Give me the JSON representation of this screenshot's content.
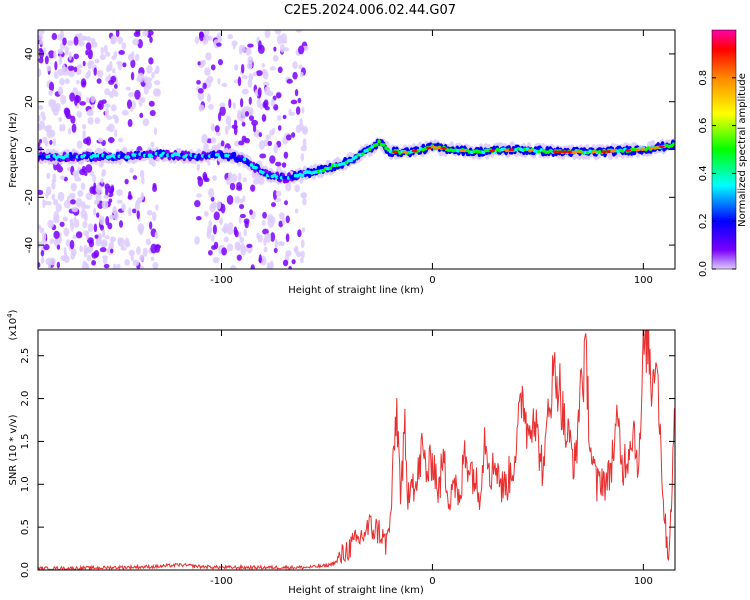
{
  "title": "C2E5.2024.006.02.44.G07",
  "chart_data": [
    {
      "type": "heatmap",
      "xlabel": "Height of straight line (km)",
      "ylabel": "Frequency (Hz)",
      "xlim": [
        -187,
        115
      ],
      "ylim": [
        -50,
        50
      ],
      "xticks": [
        -100,
        0,
        100
      ],
      "yticks": [
        -40,
        -20,
        0,
        20,
        40
      ],
      "colorbar": {
        "label": "Normalized spectral amplitude",
        "range": [
          0.0,
          1.0
        ],
        "ticks": [
          "0.0",
          "0.2",
          "0.4",
          "0.6",
          "0.8"
        ],
        "colors": [
          "#ddccff",
          "#7a00ff",
          "#0000ff",
          "#00ffff",
          "#00ff00",
          "#ffff00",
          "#ff8800",
          "#ff0000",
          "#ff00aa"
        ]
      },
      "ridge": {
        "x": [
          -187,
          -150,
          -130,
          -110,
          -100,
          -90,
          -80,
          -70,
          -60,
          -50,
          -40,
          -30,
          -25,
          -20,
          -10,
          0,
          20,
          40,
          60,
          80,
          100,
          115
        ],
        "y": [
          -3,
          -3,
          -2,
          -3,
          -2,
          -4,
          -10,
          -12,
          -10,
          -8,
          -5,
          0,
          3,
          -1,
          -1,
          1,
          -1,
          0,
          -1,
          -1,
          0,
          2
        ]
      }
    },
    {
      "type": "line",
      "xlabel": "Height of straight line (km)",
      "ylabel": "SNR (10 * v/v)",
      "exponent_label": "(x10",
      "exponent_sup": "4",
      "exponent_close": ")",
      "xlim": [
        -187,
        115
      ],
      "ylim": [
        0.0,
        2.8
      ],
      "xticks": [
        -100,
        0,
        100
      ],
      "yticks": [
        "0.0",
        "0.5",
        "1.0",
        "1.5",
        "2.0",
        "2.5"
      ],
      "color": "#e83030",
      "series": [
        {
          "x": [
            -187,
            -170,
            -150,
            -130,
            -120,
            -110,
            -100,
            -80,
            -60,
            -50,
            -45,
            -40,
            -35,
            -30,
            -25,
            -22,
            -20,
            -17,
            -15,
            -13,
            -12,
            -10,
            -8,
            -5,
            -2,
            0,
            3,
            5,
            8,
            10,
            13,
            15,
            18,
            20,
            22,
            25,
            28,
            30,
            33,
            35,
            38,
            40,
            43,
            45,
            48,
            50,
            53,
            55,
            58,
            60,
            63,
            65,
            68,
            70,
            73,
            75,
            78,
            80,
            83,
            85,
            88,
            90,
            93,
            95,
            98,
            100,
            102,
            104,
            106,
            108,
            110,
            112,
            115
          ],
          "y": [
            0.02,
            0.02,
            0.03,
            0.04,
            0.06,
            0.04,
            0.03,
            0.03,
            0.03,
            0.05,
            0.1,
            0.25,
            0.35,
            0.5,
            0.45,
            0.3,
            0.55,
            1.9,
            0.9,
            1.6,
            0.8,
            1.2,
            0.9,
            1.4,
            1.1,
            1.35,
            0.9,
            1.3,
            0.85,
            1.1,
            0.7,
            1.4,
            1.2,
            1.1,
            0.85,
            1.6,
            1.1,
            1.3,
            0.95,
            1.0,
            1.2,
            1.5,
            2.1,
            1.6,
            1.9,
            1.5,
            1.1,
            2.0,
            2.3,
            2.2,
            1.6,
            1.5,
            1.2,
            2.2,
            2.4,
            1.4,
            0.95,
            1.1,
            1.0,
            1.3,
            1.7,
            1.2,
            1.4,
            1.7,
            1.2,
            2.5,
            2.8,
            2.1,
            2.7,
            1.6,
            0.6,
            0.15,
            1.8
          ]
        }
      ]
    }
  ]
}
